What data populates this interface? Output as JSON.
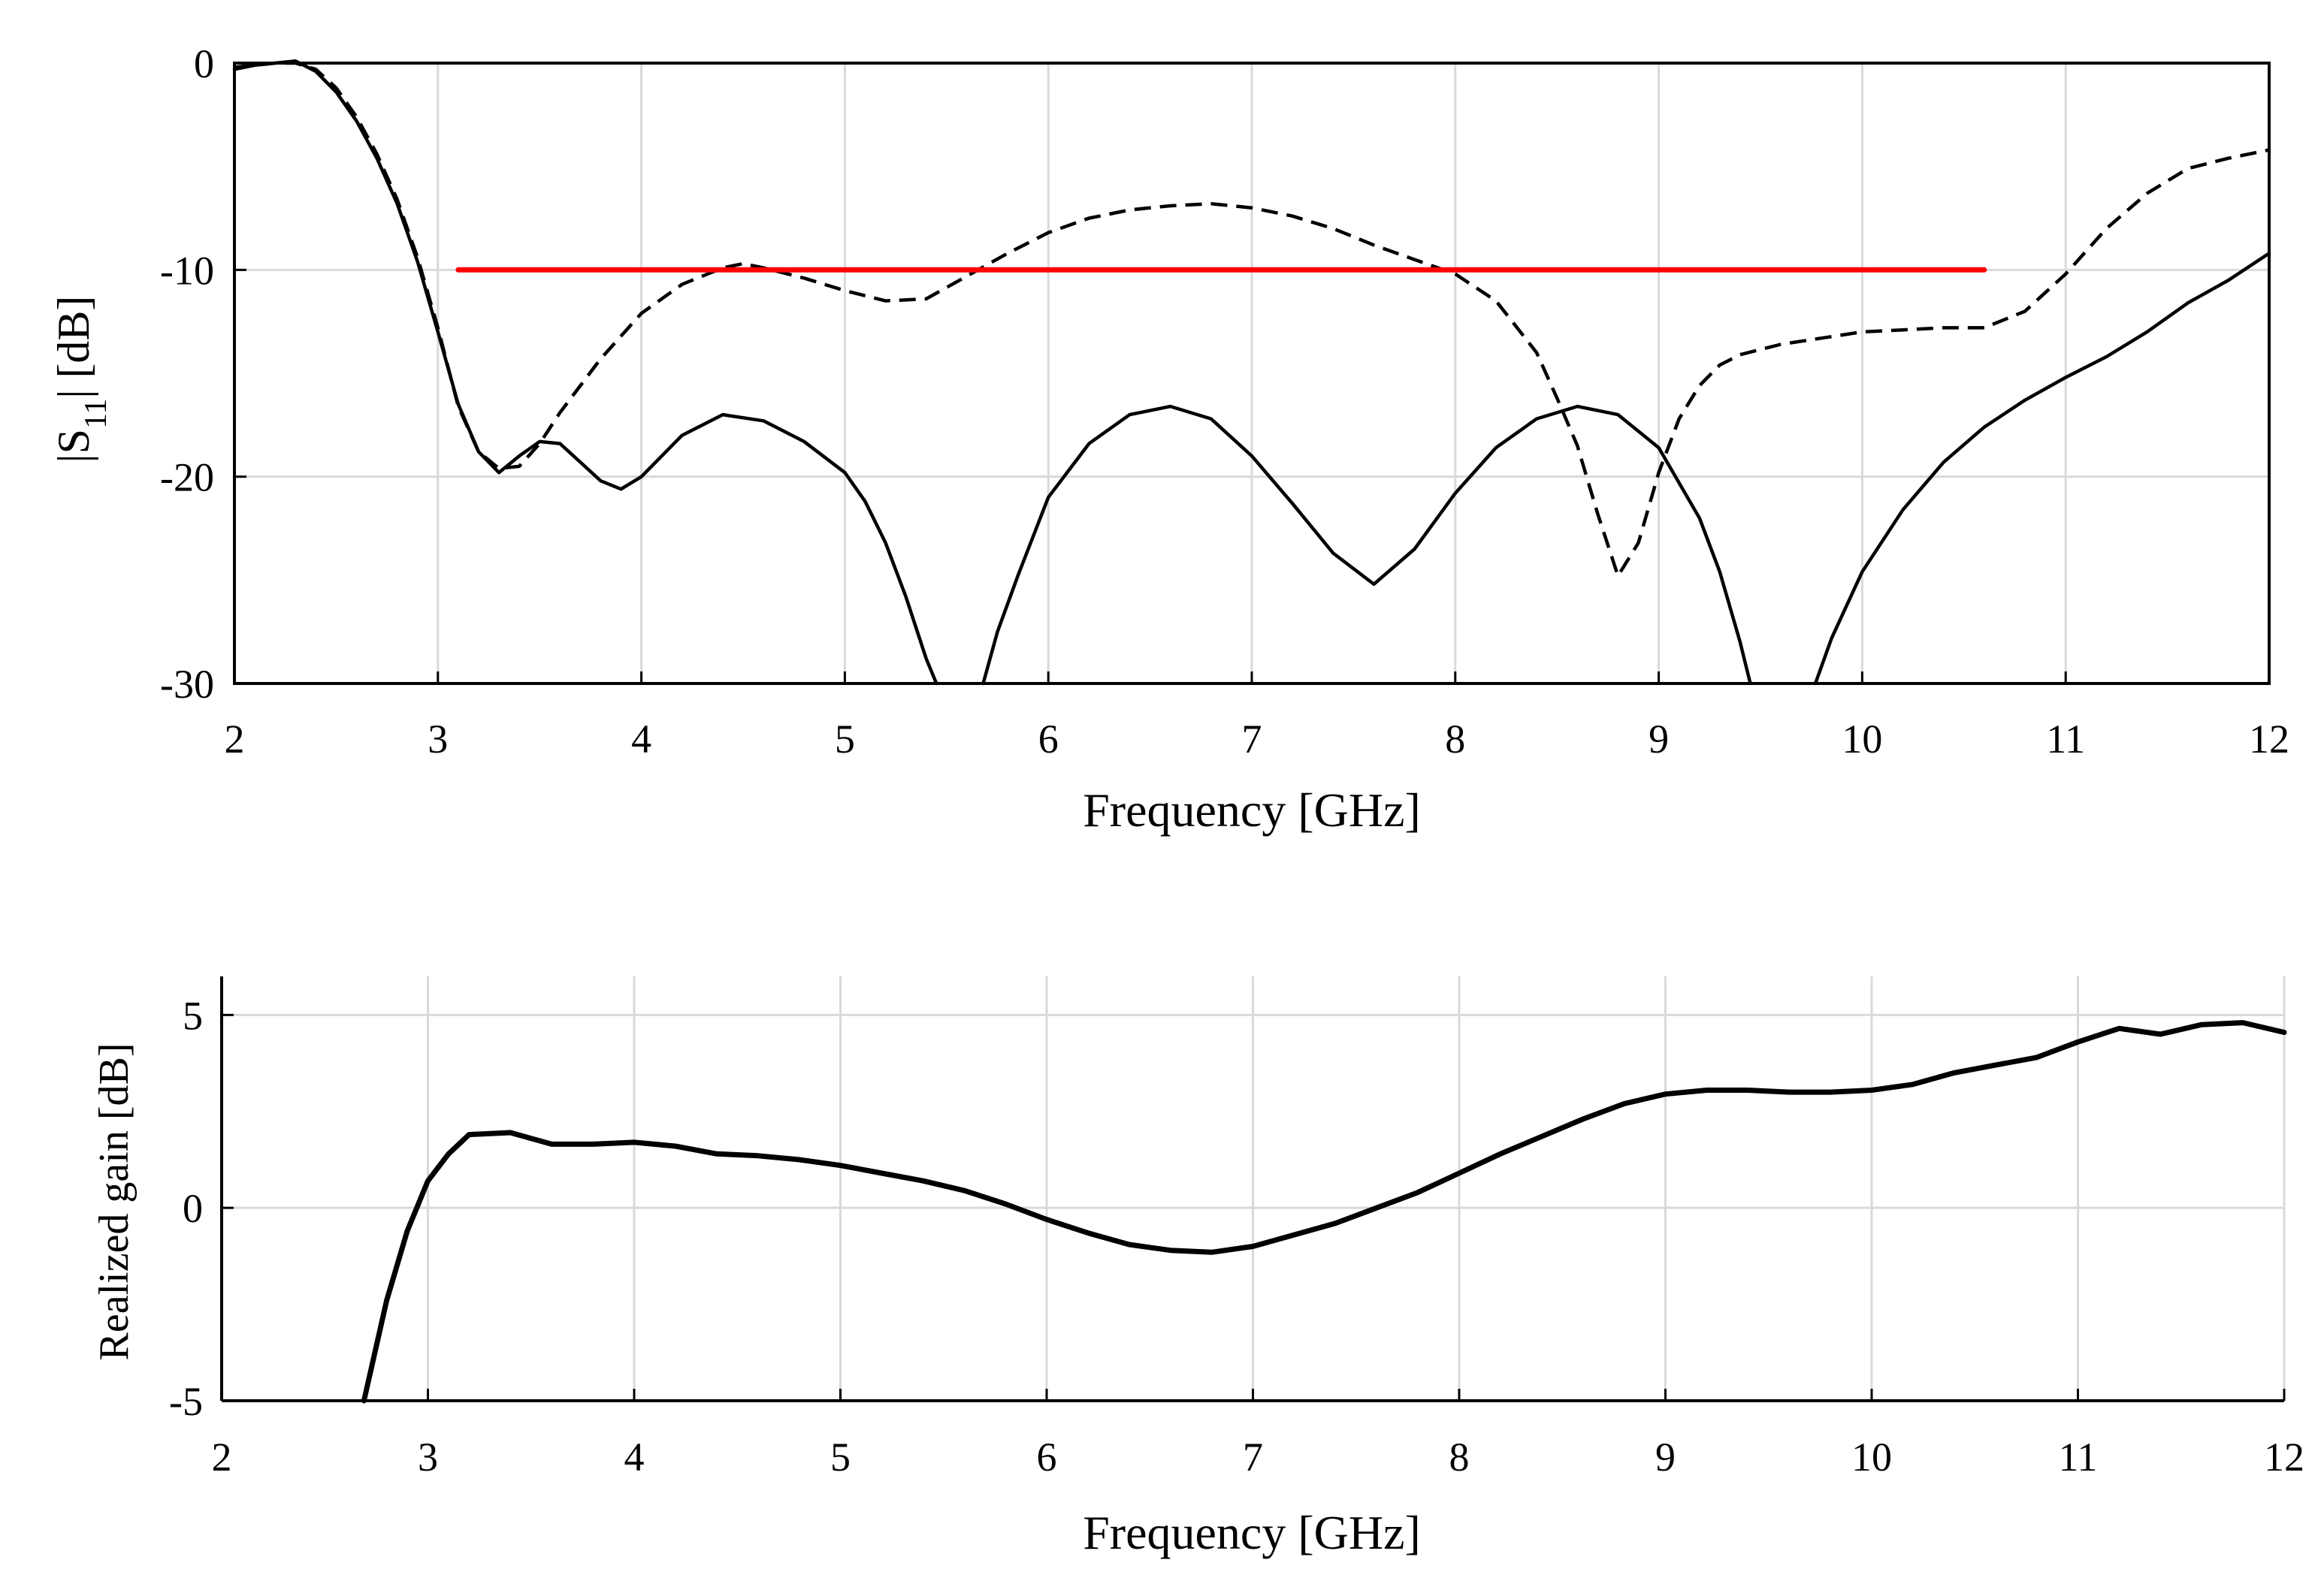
{
  "chart_data": [
    {
      "type": "line",
      "id": "s11",
      "xlabel": "Frequency [GHz]",
      "ylabel": "|S11| [dB]",
      "ylabel_main": "|S",
      "ylabel_sub": "11",
      "ylabel_tail": "| [dB]",
      "xlim": [
        2,
        12
      ],
      "ylim": [
        -30,
        0
      ],
      "xticks": [
        2,
        3,
        4,
        5,
        6,
        7,
        8,
        9,
        10,
        11,
        12
      ],
      "yticks": [
        0,
        -10,
        -20,
        -30
      ],
      "grid": true,
      "series": [
        {
          "name": "solid",
          "style": "solid",
          "color": "#000000",
          "segments": [
            {
              "x": [
                2.0,
                2.1,
                2.2,
                2.3,
                2.4,
                2.5,
                2.6,
                2.7,
                2.8,
                2.9,
                3.0,
                3.1,
                3.2,
                3.3,
                3.4,
                3.5,
                3.6,
                3.7,
                3.8,
                3.9,
                4.0,
                4.2,
                4.4,
                4.6,
                4.8,
                5.0,
                5.1,
                5.2,
                5.3,
                5.4,
                5.45
              ],
              "y": [
                -0.3,
                -0.1,
                0.0,
                0.1,
                -0.4,
                -1.4,
                -2.8,
                -4.6,
                -6.8,
                -9.6,
                -13.0,
                -16.5,
                -18.8,
                -19.8,
                -19.0,
                -18.3,
                -18.4,
                -19.3,
                -20.2,
                -20.6,
                -20.0,
                -18.0,
                -17.0,
                -17.3,
                -18.3,
                -19.8,
                -21.2,
                -23.2,
                -25.8,
                -28.8,
                -30.0
              ]
            },
            {
              "x": [
                5.68,
                5.75,
                5.85,
                6.0,
                6.2,
                6.4,
                6.6,
                6.8,
                7.0,
                7.2,
                7.4,
                7.6,
                7.8,
                8.0,
                8.2,
                8.4,
                8.6,
                8.8,
                9.0,
                9.2,
                9.3,
                9.4,
                9.45
              ],
              "y": [
                -30.0,
                -27.5,
                -24.8,
                -21.0,
                -18.4,
                -17.0,
                -16.6,
                -17.2,
                -19.0,
                -21.3,
                -23.7,
                -25.2,
                -23.5,
                -20.8,
                -18.6,
                -17.2,
                -16.6,
                -17.0,
                -18.6,
                -22.0,
                -24.6,
                -28.0,
                -30.0
              ]
            },
            {
              "x": [
                9.77,
                9.85,
                10.0,
                10.2,
                10.4,
                10.6,
                10.8,
                11.0,
                11.2,
                11.4,
                11.6,
                11.8,
                12.0
              ],
              "y": [
                -30.0,
                -27.8,
                -24.6,
                -21.6,
                -19.3,
                -17.6,
                -16.3,
                -15.2,
                -14.2,
                -13.0,
                -11.6,
                -10.5,
                -9.2
              ]
            }
          ]
        },
        {
          "name": "dashed",
          "style": "dashed",
          "color": "#000000",
          "segments": [
            {
              "x": [
                2.0,
                2.1,
                2.2,
                2.3,
                2.4,
                2.5,
                2.6,
                2.7,
                2.8,
                2.9,
                3.0,
                3.1,
                3.2,
                3.3,
                3.4,
                3.5,
                3.6,
                3.8,
                4.0,
                4.2,
                4.4,
                4.5,
                4.6,
                4.8,
                5.0,
                5.2,
                5.4,
                5.6,
                5.8,
                6.0,
                6.2,
                6.4,
                6.6,
                6.8,
                7.0,
                7.2,
                7.4,
                7.6,
                7.8,
                8.0,
                8.2,
                8.4,
                8.5,
                8.6,
                8.7,
                8.8,
                8.9,
                9.0,
                9.1,
                9.2,
                9.3,
                9.4,
                9.6,
                9.8,
                10.0,
                10.2,
                10.4,
                10.6,
                10.8,
                11.0,
                11.2,
                11.4,
                11.6,
                11.8,
                12.0
              ],
              "y": [
                -0.2,
                -0.1,
                0.0,
                0.0,
                -0.3,
                -1.2,
                -2.6,
                -4.4,
                -6.6,
                -9.4,
                -12.8,
                -16.6,
                -18.8,
                -19.6,
                -19.5,
                -18.4,
                -16.9,
                -14.3,
                -12.1,
                -10.7,
                -9.9,
                -9.7,
                -9.9,
                -10.4,
                -11.0,
                -11.5,
                -11.4,
                -10.3,
                -9.2,
                -8.2,
                -7.5,
                -7.1,
                -6.9,
                -6.8,
                -7.0,
                -7.4,
                -8.0,
                -8.8,
                -9.5,
                -10.2,
                -11.5,
                -14.0,
                -16.2,
                -18.5,
                -21.8,
                -24.8,
                -23.2,
                -19.8,
                -17.2,
                -15.6,
                -14.6,
                -14.1,
                -13.6,
                -13.3,
                -13.0,
                -12.9,
                -12.8,
                -12.8,
                -12.0,
                -10.2,
                -8.0,
                -6.3,
                -5.1,
                -4.6,
                -4.2
              ]
            }
          ]
        },
        {
          "name": "-10 dB threshold",
          "style": "solid",
          "color": "#ff0000",
          "segments": [
            {
              "x": [
                3.1,
                10.6
              ],
              "y": [
                -10,
                -10
              ]
            }
          ]
        }
      ]
    },
    {
      "type": "line",
      "id": "gain",
      "xlabel": "Frequency [GHz]",
      "ylabel": "Realized gain [dB]",
      "xlim": [
        2,
        12
      ],
      "ylim": [
        -5,
        6
      ],
      "xticks": [
        2,
        3,
        4,
        5,
        6,
        7,
        8,
        9,
        10,
        11,
        12
      ],
      "yticks": [
        5,
        0,
        -5
      ],
      "grid": true,
      "series": [
        {
          "name": "realized gain",
          "style": "solid",
          "color": "#000000",
          "segments": [
            {
              "x": [
                2.69,
                2.8,
                2.9,
                3.0,
                3.1,
                3.2,
                3.4,
                3.6,
                3.8,
                4.0,
                4.2,
                4.4,
                4.6,
                4.8,
                5.0,
                5.2,
                5.4,
                5.6,
                5.8,
                6.0,
                6.2,
                6.4,
                6.6,
                6.8,
                7.0,
                7.2,
                7.4,
                7.6,
                7.8,
                8.0,
                8.2,
                8.4,
                8.6,
                8.8,
                9.0,
                9.2,
                9.4,
                9.6,
                9.8,
                10.0,
                10.2,
                10.4,
                10.6,
                10.8,
                11.0,
                11.2,
                11.4,
                11.6,
                11.8,
                12.0
              ],
              "y": [
                -5.0,
                -2.4,
                -0.6,
                0.7,
                1.4,
                1.9,
                1.95,
                1.65,
                1.65,
                1.7,
                1.6,
                1.4,
                1.35,
                1.25,
                1.1,
                0.9,
                0.7,
                0.45,
                0.1,
                -0.3,
                -0.65,
                -0.95,
                -1.1,
                -1.15,
                -1.0,
                -0.7,
                -0.4,
                0.0,
                0.4,
                0.9,
                1.4,
                1.85,
                2.3,
                2.7,
                2.95,
                3.05,
                3.05,
                3.0,
                3.0,
                3.05,
                3.2,
                3.5,
                3.7,
                3.9,
                4.3,
                4.65,
                4.5,
                4.75,
                4.8,
                4.55
              ]
            }
          ]
        }
      ]
    }
  ]
}
